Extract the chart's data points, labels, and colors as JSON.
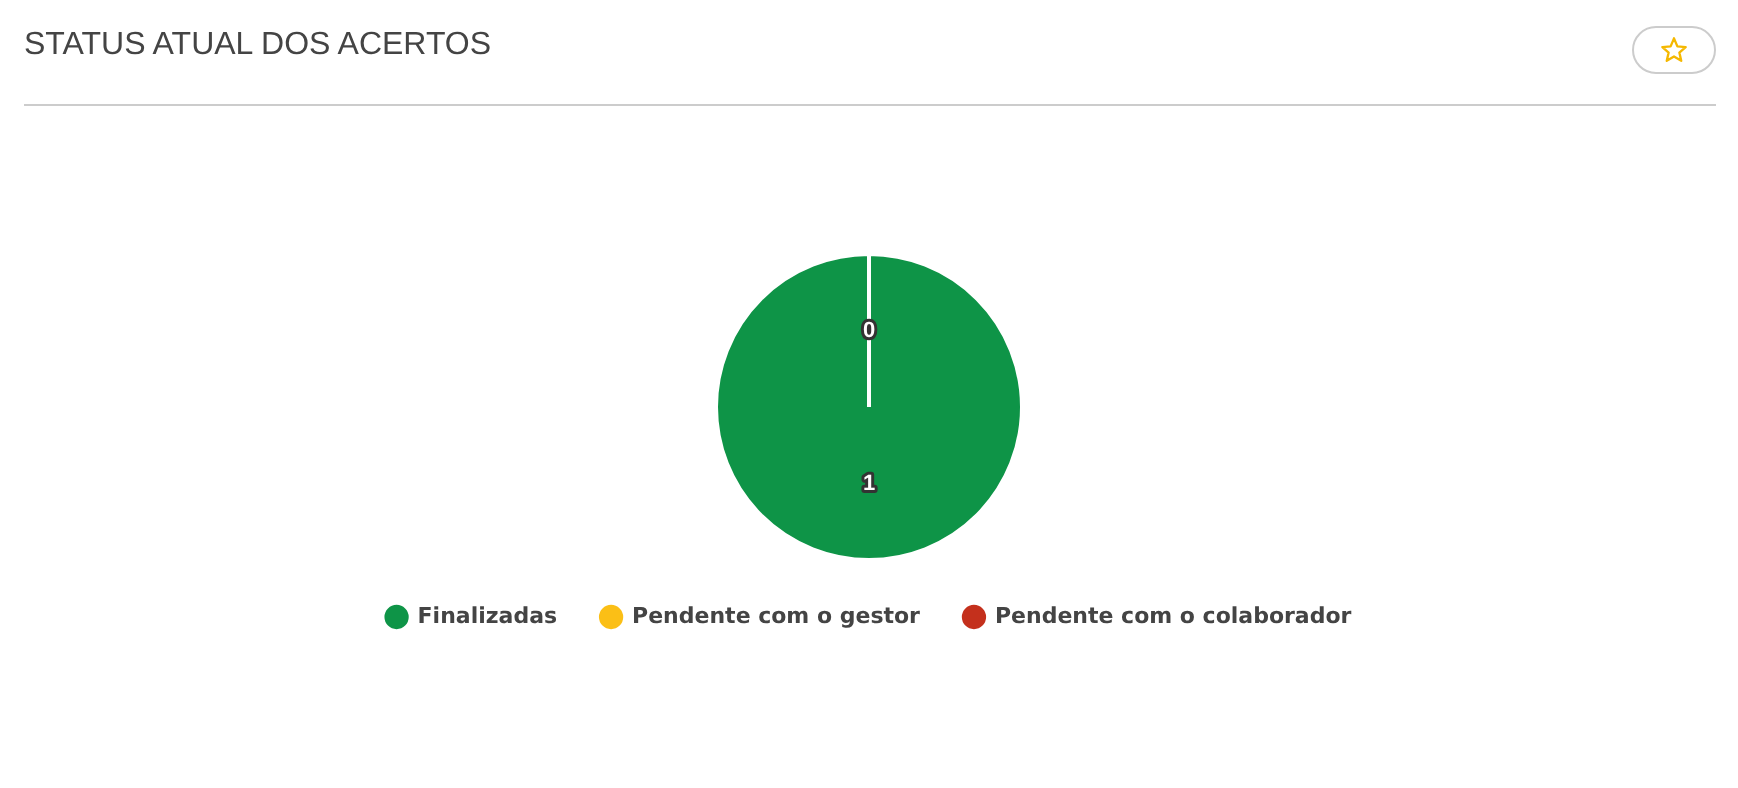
{
  "chart_data": {
    "type": "pie",
    "title": "STATUS ATUAL DOS ACERTOS",
    "categories": [
      "Finalizadas",
      "Pendente com o gestor",
      "Pendente com o colaborador"
    ],
    "values": [
      1,
      0,
      0
    ],
    "colors": [
      "#0e9447",
      "#fbbf16",
      "#c4301c"
    ],
    "value_labels": [
      "1",
      "0",
      null
    ],
    "legend": "bottom"
  }
}
